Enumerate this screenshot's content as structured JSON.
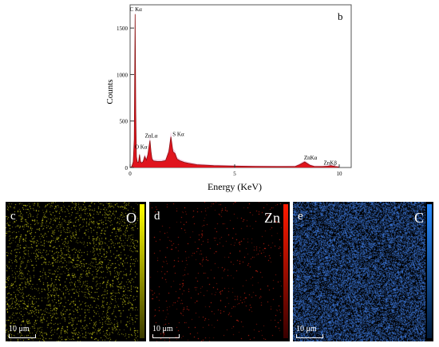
{
  "chart_data": {
    "type": "line",
    "panel_label": "b",
    "xlabel": "Energy (KeV)",
    "ylabel": "Counts",
    "xlim": [
      0,
      10
    ],
    "ylim": [
      0,
      1750
    ],
    "x_ticks": [
      0,
      5,
      10
    ],
    "y_ticks": [
      0,
      500,
      1000,
      1500
    ],
    "grid": false,
    "series": [
      {
        "x": [
          0.0,
          0.08,
          0.15,
          0.2,
          0.24,
          0.27,
          0.3,
          0.34,
          0.4,
          0.45,
          0.5,
          0.55,
          0.62,
          0.7,
          0.78,
          0.85,
          0.9,
          0.95,
          1.0,
          1.05,
          1.12,
          1.3,
          1.5,
          1.7,
          1.85,
          1.95,
          2.05,
          2.15,
          2.25,
          2.4,
          2.6,
          2.8,
          3.2,
          4.0,
          5.0,
          6.0,
          7.0,
          7.5,
          7.9,
          8.1,
          8.35,
          8.6,
          8.8,
          9.2,
          9.45,
          9.6,
          9.8,
          10.0
        ],
        "y": [
          0,
          10,
          60,
          300,
          1650,
          600,
          120,
          60,
          55,
          140,
          60,
          50,
          60,
          120,
          80,
          140,
          220,
          290,
          170,
          90,
          70,
          65,
          65,
          75,
          170,
          330,
          170,
          150,
          90,
          70,
          55,
          45,
          30,
          20,
          15,
          12,
          10,
          10,
          12,
          30,
          60,
          25,
          12,
          10,
          14,
          20,
          10,
          5
        ]
      }
    ],
    "peak_labels": [
      {
        "text": "C Kα",
        "x": 0.277,
        "y": 1680
      },
      {
        "text": "O Kα",
        "x": 0.525,
        "y": 200
      },
      {
        "text": "ZnLα",
        "x": 1.012,
        "y": 320
      },
      {
        "text": "S Kα",
        "x": 2.307,
        "y": 340
      },
      {
        "text": "ZnKα",
        "x": 8.63,
        "y": 85
      },
      {
        "text": "ZnKβ",
        "x": 9.57,
        "y": 30
      }
    ]
  },
  "maps": [
    {
      "letter": "c",
      "element": "O",
      "scale": "10 μm",
      "color": "#e6e61a"
    },
    {
      "letter": "d",
      "element": "Zn",
      "scale": "10 μm",
      "color": "#ff2a14"
    },
    {
      "letter": "e",
      "element": "C",
      "scale": "10 μm",
      "color": "#3c78dc"
    }
  ]
}
